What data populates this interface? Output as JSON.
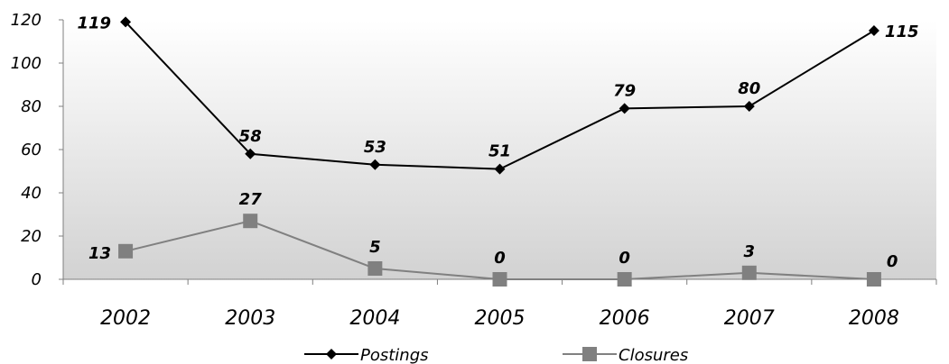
{
  "chart_data": {
    "type": "line",
    "title": "",
    "xlabel": "",
    "ylabel": "",
    "categories": [
      "2002",
      "2003",
      "2004",
      "2005",
      "2006",
      "2007",
      "2008"
    ],
    "ylim": [
      0,
      120
    ],
    "yticks": [
      "0",
      "20",
      "40",
      "60",
      "80",
      "100",
      "120"
    ],
    "grid": false,
    "legend": "bottom",
    "series": [
      {
        "name": "Postings",
        "values": [
          119,
          58,
          53,
          51,
          79,
          80,
          115
        ],
        "labels": [
          "119",
          "58",
          "53",
          "51",
          "79",
          "80",
          "115"
        ],
        "color": "#000000",
        "marker": "diamond"
      },
      {
        "name": "Closures",
        "values": [
          13,
          27,
          5,
          0,
          0,
          3,
          0
        ],
        "labels": [
          "13",
          "27",
          "5",
          "0",
          "0",
          "3",
          "0"
        ],
        "color": "#808080",
        "marker": "square"
      }
    ]
  }
}
